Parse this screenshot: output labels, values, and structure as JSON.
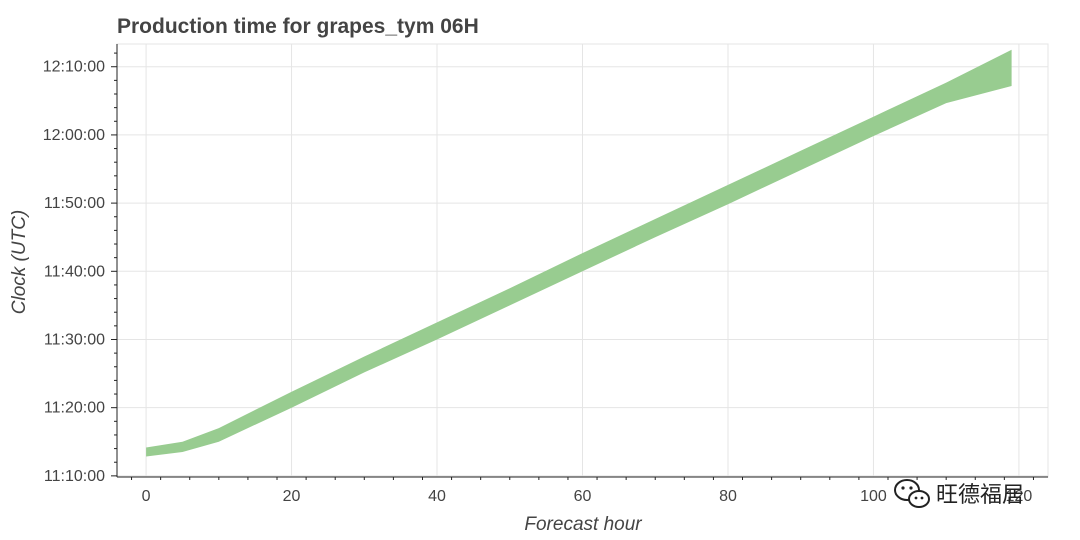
{
  "chart_data": {
    "type": "area",
    "title": "Production time for grapes_tym 06H",
    "xlabel": "Forecast hour",
    "ylabel": "Clock (UTC)",
    "xlim": [
      -4,
      124
    ],
    "ylim": [
      "11:09:50",
      "12:13:20"
    ],
    "x_ticks": [
      0,
      20,
      40,
      60,
      80,
      100,
      120
    ],
    "x_tick_labels": [
      "0",
      "20",
      "40",
      "60",
      "80",
      "100",
      "120"
    ],
    "y_ticks": [
      "11:10:00",
      "11:20:00",
      "11:30:00",
      "11:40:00",
      "11:50:00",
      "12:00:00",
      "12:10:00"
    ],
    "grid": true,
    "color": "#98cc90",
    "series": [
      {
        "x": [
          0,
          5,
          10,
          15,
          20,
          30,
          40,
          50,
          60,
          70,
          80,
          90,
          100,
          110,
          119
        ],
        "lower": [
          "11:12:50",
          "11:13:30",
          "11:15:00",
          "11:17:30",
          "11:20:00",
          "11:25:10",
          "11:30:00",
          "11:35:00",
          "11:40:00",
          "11:45:00",
          "11:49:50",
          "11:54:50",
          "11:59:50",
          "12:04:40",
          "12:07:10"
        ],
        "upper": [
          "11:14:10",
          "11:15:00",
          "11:17:00",
          "11:19:40",
          "11:22:20",
          "11:27:30",
          "11:32:30",
          "11:37:30",
          "11:42:40",
          "11:47:40",
          "11:52:40",
          "11:57:40",
          "12:02:40",
          "12:07:40",
          "12:12:30"
        ]
      }
    ]
  },
  "watermark": {
    "icon": "wechat-icon",
    "text": "旺德福居"
  }
}
